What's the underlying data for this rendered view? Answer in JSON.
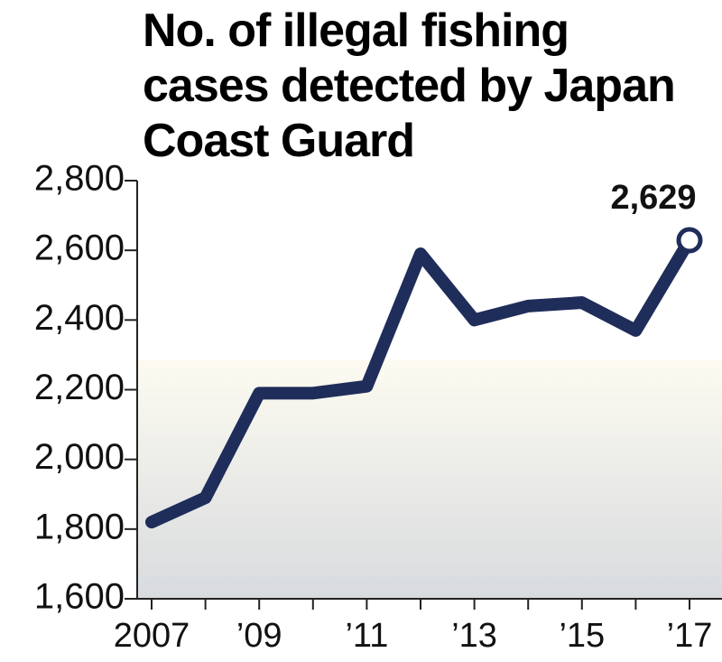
{
  "chart_data": {
    "type": "line",
    "title": "No. of illegal fishing cases detected by Japan Coast Guard",
    "categories": [
      "2007",
      null,
      "’09",
      null,
      "’11",
      null,
      "’13",
      null,
      "’15",
      null,
      "’17"
    ],
    "values": [
      1820,
      1890,
      2190,
      2190,
      2210,
      2590,
      2400,
      2440,
      2450,
      2370,
      2629
    ],
    "value_labels": [
      null,
      null,
      null,
      null,
      null,
      null,
      null,
      null,
      null,
      null,
      "2,629"
    ],
    "color": "#1f2d5a",
    "ylim": [
      1600,
      2800
    ],
    "yticks": [
      {
        "value": 1600,
        "label": "1,600"
      },
      {
        "value": 1800,
        "label": "1,800"
      },
      {
        "value": 2000,
        "label": "2,000"
      },
      {
        "value": 2200,
        "label": "2,200"
      },
      {
        "value": 2400,
        "label": "2,400"
      },
      {
        "value": 2600,
        "label": "2,600"
      },
      {
        "value": 2800,
        "label": "2,800"
      }
    ]
  }
}
